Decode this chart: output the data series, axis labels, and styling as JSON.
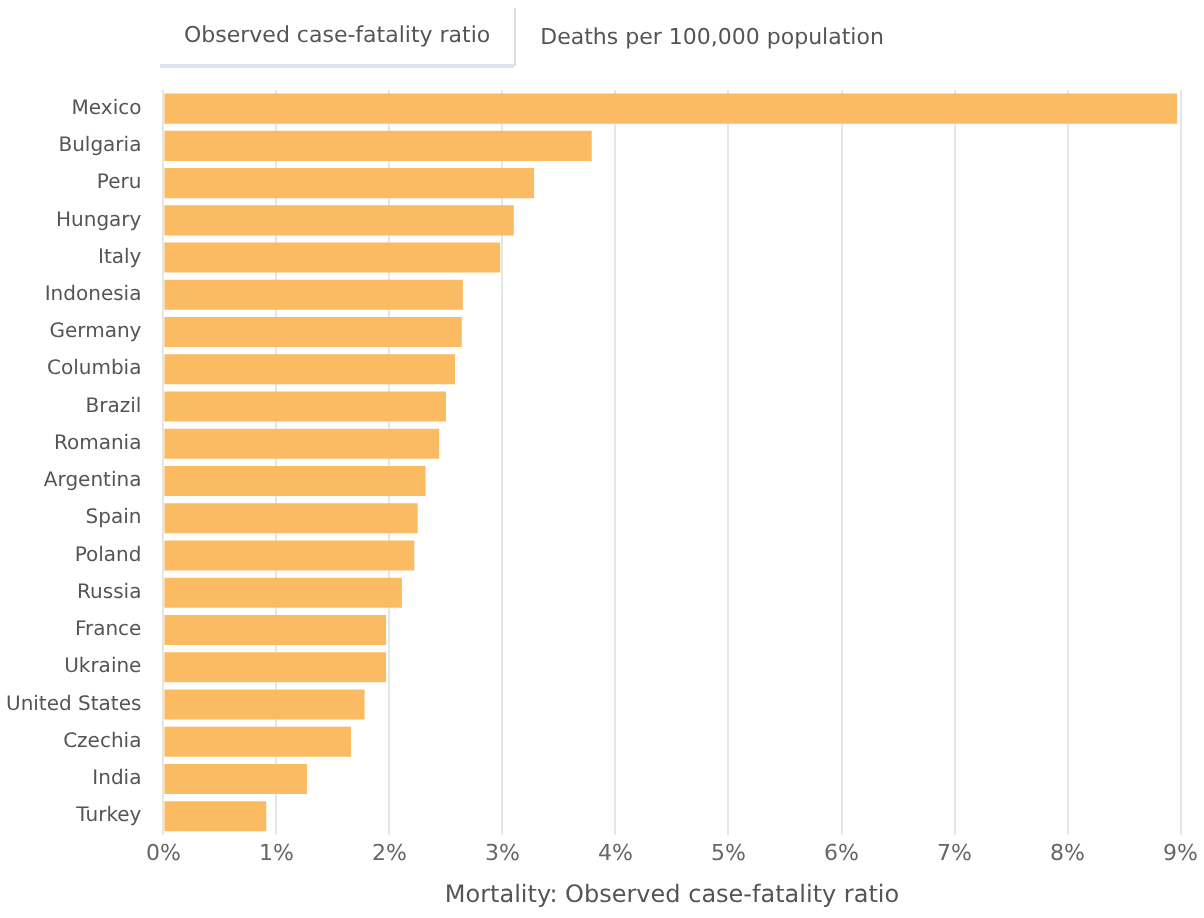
{
  "chart_data": {
    "type": "bar",
    "orientation": "horizontal",
    "xlabel": "Mortality: Observed case-fatality ratio",
    "annotations": [
      "Observed case-fatality ratio",
      "Deaths per 100,000 population"
    ],
    "categories": [
      "Mexico",
      "Bulgaria",
      "Peru",
      "Hungary",
      "Italy",
      "Indonesia",
      "Germany",
      "Columbia",
      "Brazil",
      "Romania",
      "Argentina",
      "Spain",
      "Poland",
      "Russia",
      "France",
      "Ukraine",
      "United States",
      "Czechia",
      "India",
      "Turkey"
    ],
    "values": [
      8.97,
      3.79,
      3.28,
      3.1,
      2.98,
      2.65,
      2.64,
      2.58,
      2.5,
      2.44,
      2.32,
      2.25,
      2.22,
      2.11,
      1.97,
      1.97,
      1.78,
      1.66,
      1.27,
      0.91
    ],
    "color": "#fbbb62",
    "xlim": [
      0,
      9
    ],
    "xticks": [
      {
        "value": 0,
        "label": "0%"
      },
      {
        "value": 1,
        "label": "1%"
      },
      {
        "value": 2,
        "label": "2%"
      },
      {
        "value": 3,
        "label": "3%"
      },
      {
        "value": 4,
        "label": "4%"
      },
      {
        "value": 5,
        "label": "5%"
      },
      {
        "value": 6,
        "label": "6%"
      },
      {
        "value": 7,
        "label": "7%"
      },
      {
        "value": 8,
        "label": "8%"
      },
      {
        "value": 9,
        "label": "9%"
      }
    ],
    "grid": "x",
    "legend": false
  }
}
